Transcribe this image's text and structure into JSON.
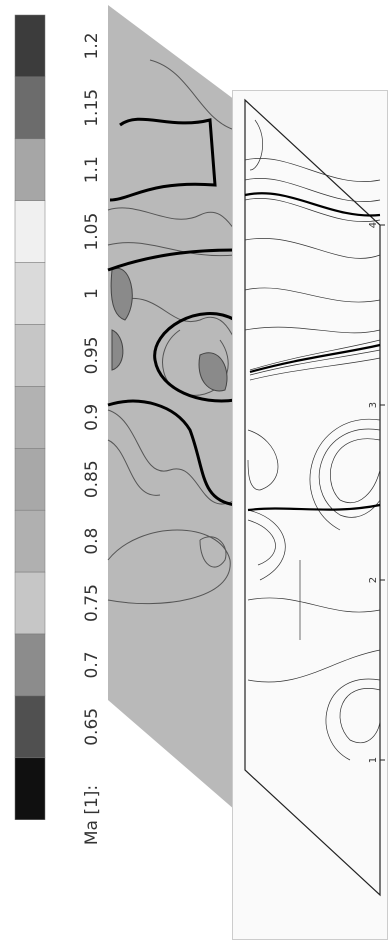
{
  "colorbar": {
    "label": "Ma [1]:",
    "ticks": [
      "1.2",
      "1.15",
      "1.1",
      "1.05",
      "1",
      "0.95",
      "0.9",
      "0.85",
      "0.8",
      "0.75",
      "0.7",
      "0.65"
    ]
  },
  "right_plot": {
    "axis_labels": [
      "4",
      "3",
      "2",
      "1"
    ]
  }
}
